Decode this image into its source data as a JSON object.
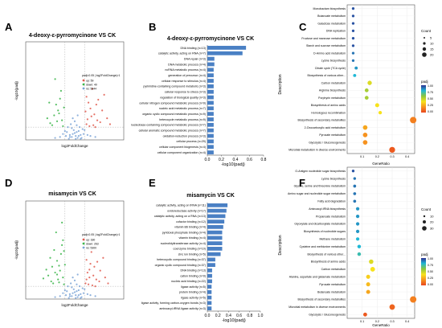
{
  "panel_letters": [
    "A",
    "B",
    "C",
    "D",
    "E",
    "F"
  ],
  "colors": {
    "up": "#e05a4e",
    "down": "#3bb54a",
    "ns": "#7aa3d6",
    "bar": "#4a80c4",
    "dot_scale": [
      "#2e3192",
      "#1fb8d6",
      "#8cc63e",
      "#f7e21b",
      "#f6921e",
      "#e8461e"
    ]
  },
  "chart_data": [
    {
      "panel": "A",
      "type": "scatter",
      "subtype": "volcano",
      "title": "4-deoxy-ε-pyrromycinone VS CK",
      "xlabel": "log2FoldChange",
      "ylabel": "-log10(padj)",
      "legend_title": "padj<0.05 | log2FoldChange|>1",
      "legend": [
        "up: 59",
        "down: 40",
        "ns: 5644"
      ],
      "series": [
        {
          "name": "up",
          "points": [
            [
              1.3,
              2.1
            ],
            [
              1.6,
              3.2
            ],
            [
              2.0,
              2.6
            ],
            [
              2.4,
              4.1
            ],
            [
              1.2,
              1.6
            ],
            [
              2.8,
              3.0
            ],
            [
              1.8,
              5.2
            ],
            [
              3.3,
              2.2
            ],
            [
              1.5,
              1.4
            ],
            [
              2.2,
              3.6
            ],
            [
              1.1,
              2.9
            ],
            [
              2.6,
              1.8
            ],
            [
              1.9,
              1.5
            ],
            [
              3.0,
              4.6
            ],
            [
              1.4,
              3.8
            ],
            [
              2.3,
              2.0
            ],
            [
              1.7,
              2.4
            ],
            [
              3.6,
              1.6
            ],
            [
              1.2,
              4.4
            ],
            [
              2.1,
              1.3
            ]
          ]
        },
        {
          "name": "down",
          "points": [
            [
              -1.3,
              2.0
            ],
            [
              -1.7,
              3.0
            ],
            [
              -2.1,
              2.5
            ],
            [
              -1.5,
              4.2
            ],
            [
              -2.5,
              1.7
            ],
            [
              -1.2,
              1.4
            ],
            [
              -1.9,
              3.6
            ],
            [
              -2.8,
              2.2
            ],
            [
              -1.4,
              5.0
            ],
            [
              -2.3,
              1.5
            ],
            [
              -1.6,
              2.7
            ],
            [
              -2.0,
              6.2
            ],
            [
              -1.1,
              3.3
            ],
            [
              -2.6,
              3.8
            ],
            [
              -1.8,
              1.9
            ]
          ]
        },
        {
          "name": "ns",
          "points": [
            [
              -0.5,
              0.3
            ],
            [
              -0.2,
              0.6
            ],
            [
              0.1,
              0.4
            ],
            [
              0.4,
              0.9
            ],
            [
              0.7,
              0.2
            ],
            [
              -0.8,
              0.8
            ],
            [
              -0.3,
              1.2
            ],
            [
              0.2,
              1.5
            ],
            [
              0.6,
              0.5
            ],
            [
              -0.6,
              0.1
            ],
            [
              0.0,
              0.7
            ],
            [
              0.3,
              0.2
            ],
            [
              -0.1,
              1.0
            ],
            [
              0.9,
              0.6
            ],
            [
              -0.9,
              0.4
            ],
            [
              0.5,
              1.3
            ],
            [
              -0.4,
              1.6
            ],
            [
              0.8,
              1.1
            ],
            [
              -0.7,
              1.3
            ],
            [
              0.1,
              0.1
            ],
            [
              -1.5,
              0.3
            ],
            [
              1.6,
              0.4
            ],
            [
              -1.2,
              0.6
            ],
            [
              1.3,
              0.5
            ],
            [
              -2.0,
              0.2
            ],
            [
              2.1,
              0.3
            ],
            [
              0.0,
              1.9
            ],
            [
              -0.2,
              2.2
            ],
            [
              0.3,
              2.5
            ],
            [
              -1.0,
              0.9
            ],
            [
              1.0,
              1.0
            ],
            [
              0.6,
              0.1
            ],
            [
              -0.5,
              0.5
            ],
            [
              0.2,
              0.8
            ],
            [
              -0.3,
              0.3
            ],
            [
              0.4,
              0.4
            ]
          ]
        }
      ],
      "xlim": [
        -5,
        5
      ],
      "ylim": [
        0,
        10
      ]
    },
    {
      "panel": "B",
      "type": "bar",
      "orientation": "horizontal",
      "title": "4-deoxy-ε-pyrromycinone VS CK",
      "xlabel": "-log10(padj)",
      "xlim": [
        0,
        0.8
      ],
      "xticks": [
        "0.0",
        "0.2",
        "0.4",
        "0.6",
        "0.8"
      ],
      "categories": [
        "DNA binding (n=13)",
        "catalytic activity, acting on RNA (n=7)",
        "DNA repair (n=3)",
        "DNA metabolic process (n=4)",
        "ncRNA metabolic process (n=4)",
        "generation of precursor (n=4)",
        "cellular response to stimulus (n=4)",
        "pyrimidine-containing compound metabolic (n=3)",
        "cellular response to stress (n=3)",
        "regulation of biological quality (n=3)",
        "cellular nitrogen compound metabolic process (n=9)",
        "nucleic acid metabolic process (n=7)",
        "organic cyclic compound metabolic process (n=9)",
        "heterocycle metabolic process (n=9)",
        "nucleobase-containing compound metabolic process (n=7)",
        "cellular aromatic compound metabolic process (n=7)",
        "oxidation-reduction process (n=3)",
        "cellular process (n=29)",
        "cellular component biogenesis (n=4)",
        "cellular component organization (n=4)"
      ],
      "values": [
        0.55,
        0.5,
        0.1,
        0.1,
        0.09,
        0.09,
        0.09,
        0.09,
        0.09,
        0.09,
        0.09,
        0.09,
        0.09,
        0.09,
        0.09,
        0.09,
        0.09,
        0.09,
        0.09,
        0.09
      ]
    },
    {
      "panel": "C",
      "type": "scatter",
      "subtype": "kegg-dot",
      "ylabel": "Description",
      "xlabel": "GeneRatio",
      "xlim": [
        0.0,
        0.45
      ],
      "xticks": [
        "0.1",
        "0.2",
        "0.3",
        "0.4"
      ],
      "size_legend_title": "Count",
      "size_legend": [
        "5",
        "10",
        "15",
        "20"
      ],
      "color_legend_title": "padj",
      "color_legend": [
        "1.00",
        "0.75",
        "0.50",
        "0.25",
        "0.00"
      ],
      "categories": [
        "Monobactam biosynthesis",
        "Butanoate metabolism",
        "Galactose metabolism",
        "DNA replication",
        "Fructose and mannose metabolism",
        "Starch and sucrose metabolism",
        "D-Amino acid metabolism",
        "Lysine biosynthesis",
        "Citrate cycle (TCA cycle)",
        "Biosynthesis of various other...",
        "Carbon metabolism",
        "Arginine biosynthesis",
        "Porphyrin metabolism",
        "Biosynthesis of amino acids",
        "Homologous recombination",
        "Biosynthesis of secondary metabolites",
        "2-Oxocarboxylic acid metabolism",
        "Pyruvate metabolism",
        "Glycolysis / Gluconeogenesis",
        "Microbial metabolism in diverse environments"
      ],
      "x": [
        0.04,
        0.04,
        0.04,
        0.04,
        0.04,
        0.04,
        0.04,
        0.04,
        0.06,
        0.05,
        0.15,
        0.13,
        0.13,
        0.2,
        0.22,
        0.44,
        0.12,
        0.12,
        0.12,
        0.3
      ],
      "counts": [
        1,
        1,
        1,
        1,
        1,
        1,
        1,
        1,
        2,
        2,
        6,
        4,
        4,
        5,
        3,
        18,
        7,
        7,
        7,
        14
      ],
      "padj": [
        0.95,
        0.95,
        0.95,
        0.95,
        0.95,
        0.95,
        0.9,
        0.9,
        0.85,
        0.8,
        0.45,
        0.55,
        0.55,
        0.4,
        0.4,
        0.15,
        0.25,
        0.2,
        0.2,
        0.05
      ]
    },
    {
      "panel": "D",
      "type": "scatter",
      "subtype": "volcano",
      "title": "misamycin VS CK",
      "xlabel": "log2FoldChange",
      "ylabel": "-log10(padj)",
      "legend_title": "padj<0.05 | log2FoldChange|>1",
      "legend": [
        "up: 180",
        "down: 263",
        "ns: 5300"
      ],
      "series": [
        {
          "name": "up",
          "points": [
            [
              1.2,
              2.0
            ],
            [
              1.5,
              3.0
            ],
            [
              1.9,
              2.4
            ],
            [
              2.3,
              3.8
            ],
            [
              1.1,
              1.6
            ],
            [
              2.6,
              2.9
            ],
            [
              1.7,
              4.8
            ],
            [
              3.1,
              2.2
            ],
            [
              1.4,
              1.5
            ],
            [
              2.0,
              3.3
            ],
            [
              1.3,
              2.7
            ],
            [
              2.5,
              1.8
            ],
            [
              1.8,
              1.4
            ],
            [
              2.9,
              4.2
            ],
            [
              1.6,
              3.6
            ],
            [
              2.2,
              2.0
            ],
            [
              3.4,
              1.6
            ],
            [
              1.2,
              4.0
            ],
            [
              2.1,
              1.3
            ],
            [
              1.5,
              2.2
            ]
          ]
        },
        {
          "name": "down",
          "points": [
            [
              -1.2,
              2.2
            ],
            [
              -1.6,
              3.4
            ],
            [
              -2.0,
              2.7
            ],
            [
              -1.4,
              4.6
            ],
            [
              -2.4,
              1.8
            ],
            [
              -1.1,
              1.5
            ],
            [
              -1.8,
              3.9
            ],
            [
              -2.7,
              2.4
            ],
            [
              -1.3,
              5.5
            ],
            [
              -2.2,
              1.6
            ],
            [
              -1.5,
              2.9
            ],
            [
              -1.9,
              6.8
            ],
            [
              -1.0,
              3.5
            ],
            [
              -2.5,
              4.2
            ],
            [
              -1.7,
              2.0
            ],
            [
              -2.9,
              3.0
            ],
            [
              -1.2,
              6.0
            ],
            [
              -2.1,
              5.0
            ],
            [
              -1.6,
              1.7
            ],
            [
              -3.2,
              2.1
            ],
            [
              -1.3,
              7.8
            ],
            [
              -2.3,
              3.3
            ],
            [
              -1.8,
              2.5
            ],
            [
              -1.1,
              4.9
            ]
          ]
        },
        {
          "name": "ns",
          "points": [
            [
              -0.5,
              0.3
            ],
            [
              -0.2,
              0.6
            ],
            [
              0.1,
              0.4
            ],
            [
              0.4,
              0.9
            ],
            [
              0.7,
              0.2
            ],
            [
              -0.8,
              0.8
            ],
            [
              -0.3,
              1.2
            ],
            [
              0.2,
              1.5
            ],
            [
              0.6,
              0.5
            ],
            [
              -0.6,
              0.1
            ],
            [
              0.0,
              0.7
            ],
            [
              0.3,
              0.2
            ],
            [
              -0.1,
              1.0
            ],
            [
              0.9,
              0.6
            ],
            [
              -0.9,
              0.4
            ],
            [
              0.5,
              1.3
            ],
            [
              -0.4,
              1.6
            ],
            [
              0.8,
              1.1
            ],
            [
              -0.7,
              1.3
            ],
            [
              0.1,
              0.1
            ],
            [
              -1.5,
              0.3
            ],
            [
              1.6,
              0.4
            ],
            [
              -1.2,
              0.6
            ],
            [
              1.3,
              0.5
            ],
            [
              -2.0,
              0.2
            ],
            [
              2.1,
              0.3
            ],
            [
              0.0,
              1.9
            ],
            [
              -0.2,
              2.2
            ],
            [
              0.3,
              2.5
            ],
            [
              -1.0,
              0.9
            ],
            [
              1.0,
              1.0
            ],
            [
              0.6,
              0.1
            ],
            [
              -0.5,
              0.5
            ],
            [
              0.2,
              0.8
            ],
            [
              -0.3,
              0.3
            ],
            [
              0.4,
              0.4
            ]
          ]
        }
      ],
      "xlim": [
        -5,
        5
      ],
      "ylim": [
        0,
        10
      ]
    },
    {
      "panel": "E",
      "type": "bar",
      "orientation": "horizontal",
      "title": "misamycin VS CK",
      "xlabel": "-log10(padj)",
      "xlim": [
        0,
        1.0
      ],
      "xticks": [
        "0.0",
        "0.2",
        "0.4",
        "0.6",
        "0.8",
        "1.0"
      ],
      "categories": [
        "catalytic activity, acting on tRNA (n=11)",
        "oxidoreductase activity (n=17)",
        "catalytic activity, acting on a RNA (n=13)",
        "cofactor binding (n=12)",
        "vitamin B6 binding (n=4)",
        "pyridoxal phosphate binding (n=4)",
        "vitamin binding (n=4)",
        "nucleotidyltransferase activity (n=4)",
        "coenzyme binding (n=10)",
        "zinc ion binding (n=5)",
        "heterocyclic compound binding (n=37)",
        "organic cyclic compound binding (n=37)",
        "DNA binding (n=13)",
        "cation binding (n=9)",
        "nucleic acid binding (n=22)",
        "ligase activity (n=5)",
        "protein binding (n=4)",
        "ligase activity (n=5)",
        "ligase activity, forming carbon-oxygen bonds (n=3)",
        "aminoacyl-tRNA ligase activity (n=3)"
      ],
      "values": [
        0.38,
        0.36,
        0.34,
        0.32,
        0.3,
        0.28,
        0.28,
        0.28,
        0.28,
        0.25,
        0.15,
        0.15,
        0.09,
        0.09,
        0.09,
        0.08,
        0.08,
        0.08,
        0.08,
        0.08
      ]
    },
    {
      "panel": "F",
      "type": "scatter",
      "subtype": "kegg-dot",
      "ylabel": "Description",
      "xlabel": "GeneRatio",
      "xlim": [
        0.0,
        0.45
      ],
      "xticks": [
        "0.1",
        "0.2",
        "0.3",
        "0.4"
      ],
      "size_legend_title": "Count",
      "size_legend": [
        "10",
        "20",
        "30"
      ],
      "color_legend_title": "padj",
      "color_legend": [
        "1.00",
        "0.75",
        "0.50",
        "0.25",
        "0.00"
      ],
      "categories": [
        "O-Antigen nucleotide sugar biosynthesis",
        "Lysine biosynthesis",
        "Glycine, serine and threonine metabolism",
        "Amino sugar and nucleotide sugar metabolism",
        "Fatty acid degradation",
        "Aminoacyl-tRNA biosynthesis",
        "Propanoate metabolism",
        "Glyoxylate and dicarboxylate metabolism",
        "Biosynthesis of nucleotide sugars",
        "Methane metabolism",
        "Cysteine and methionine metabolism",
        "Biosynthesis of various other...",
        "Biosynthesis of amino acids",
        "Carbon metabolism",
        "Alanine, aspartate and glutamate metabolism",
        "Pyruvate metabolism",
        "Butanoate metabolism",
        "Biosynthesis of secondary metabolites",
        "Microbial metabolism in diverse environments",
        "Glycolysis / Gluconeogenesis"
      ],
      "x": [
        0.04,
        0.05,
        0.05,
        0.05,
        0.05,
        0.07,
        0.07,
        0.07,
        0.07,
        0.07,
        0.08,
        0.08,
        0.16,
        0.17,
        0.14,
        0.14,
        0.14,
        0.44,
        0.3,
        0.12
      ],
      "counts": [
        2,
        2,
        3,
        3,
        3,
        5,
        5,
        5,
        5,
        5,
        6,
        6,
        12,
        14,
        9,
        9,
        9,
        33,
        22,
        8
      ],
      "padj": [
        0.95,
        0.9,
        0.9,
        0.9,
        0.9,
        0.85,
        0.85,
        0.85,
        0.85,
        0.8,
        0.8,
        0.75,
        0.45,
        0.4,
        0.35,
        0.3,
        0.25,
        0.15,
        0.08,
        0.05
      ]
    }
  ]
}
